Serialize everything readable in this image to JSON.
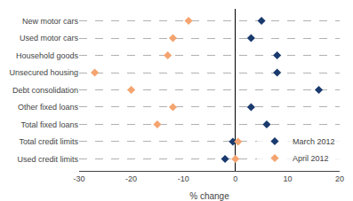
{
  "chart_data": {
    "type": "scatter",
    "orientation": "horizontal",
    "xlabel": "% change",
    "categories": [
      "New motor cars",
      "Used motor cars",
      "Household goods",
      "Unsecured housing",
      "Debt consolidation",
      "Other fixed loans",
      "Total fixed loans",
      "Total credit limits",
      "Used credit limits"
    ],
    "series": [
      {
        "name": "March 2012",
        "color": "#1a3a6e",
        "marker": "diamond",
        "values": [
          5,
          3,
          8,
          8,
          16,
          3,
          6,
          -0.5,
          -2
        ]
      },
      {
        "name": "April 2012",
        "color": "#f4a470",
        "marker": "diamond",
        "values": [
          -9,
          -12,
          -13,
          -27,
          -20,
          -12,
          -15,
          0.5,
          0
        ]
      }
    ],
    "xlim": [
      -30,
      20
    ],
    "xticks": [
      -30,
      -20,
      -10,
      0,
      10,
      20
    ],
    "grid": "y",
    "legend": "lower right"
  }
}
